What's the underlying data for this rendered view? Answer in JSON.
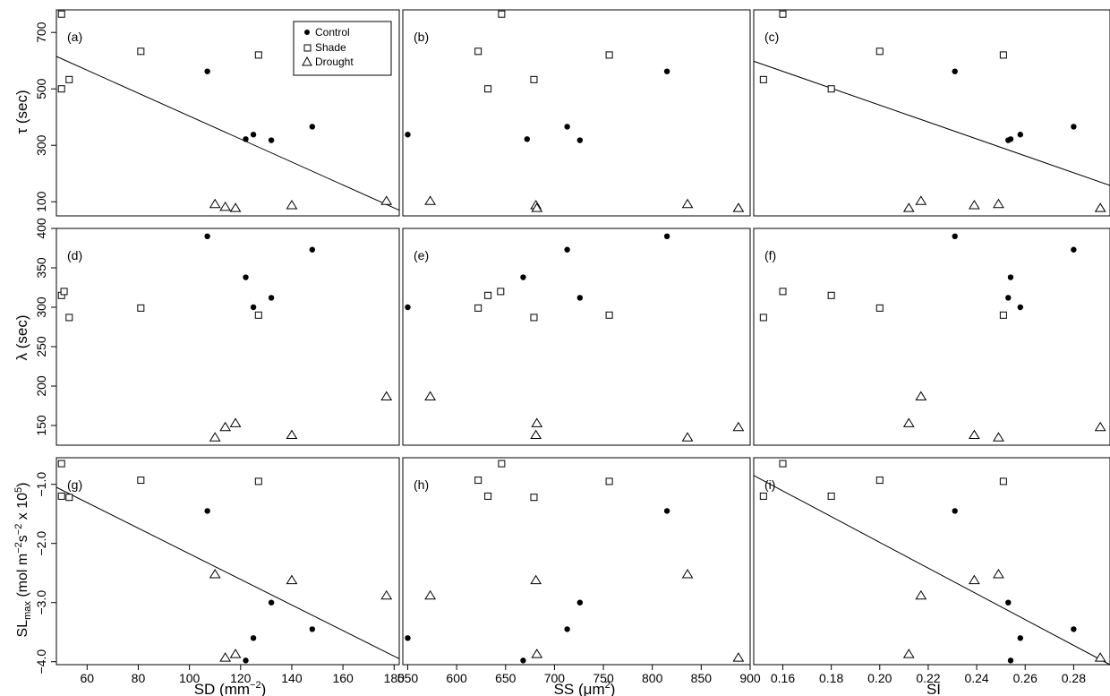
{
  "legend": {
    "position": "top-left of panel (a)",
    "entries": [
      {
        "label": "Control",
        "marker": "filled-circle"
      },
      {
        "label": "Shade",
        "marker": "open-square"
      },
      {
        "label": "Drought",
        "marker": "open-triangle"
      }
    ]
  },
  "x_labels": {
    "sd": {
      "main": "SD (mm",
      "sup": "−2",
      "tail": ")"
    },
    "ss": {
      "main": "SS (",
      "mu": "μ",
      "mid": "m",
      "sup": "2",
      "tail": ")"
    },
    "si": {
      "main": "SI"
    }
  },
  "y_labels": {
    "tau": {
      "sym": "τ",
      "rest": " (sec)"
    },
    "lambda": {
      "sym": "λ",
      "rest": " (sec)"
    },
    "sl": {
      "main": "SL",
      "sub": "max",
      "a": " (mol m",
      "sup1": "−2",
      "b": "s",
      "sup2": "−2",
      "c": " x 10",
      "sup3": "5",
      "d": ")"
    }
  },
  "colors": {
    "marker": "#000000",
    "line": "#000000",
    "frame": "#000000",
    "background": "#ffffff"
  },
  "chart_data": [
    {
      "panel": "(a)",
      "type": "scatter",
      "xlim": [
        48,
        182
      ],
      "ylim": [
        50,
        780
      ],
      "xticks": [
        "60",
        "80",
        "100",
        "120",
        "140",
        "160",
        "180"
      ],
      "yticks": [
        "100",
        "300",
        "500",
        "700"
      ],
      "series": [
        {
          "name": "Control",
          "points": [
            [
              107,
              562
            ],
            [
              122,
              322
            ],
            [
              125,
              338
            ],
            [
              132,
              318
            ],
            [
              148,
              366
            ]
          ]
        },
        {
          "name": "Shade",
          "points": [
            [
              50,
              765
            ],
            [
              50,
              500
            ],
            [
              53,
              533
            ],
            [
              81,
              633
            ],
            [
              127,
              620
            ]
          ]
        },
        {
          "name": "Drought",
          "points": [
            [
              110,
              92
            ],
            [
              114,
              82
            ],
            [
              118,
              78
            ],
            [
              140,
              88
            ],
            [
              177,
              103
            ]
          ]
        }
      ],
      "fit": [
        [
          48,
          615
        ],
        [
          182,
          70
        ]
      ]
    },
    {
      "panel": "(b)",
      "type": "scatter",
      "xlim": [
        545,
        900
      ],
      "ylim": [
        50,
        780
      ],
      "xticks": [
        "550",
        "600",
        "650",
        "700",
        "750",
        "800",
        "850",
        "900"
      ],
      "yticks": [],
      "series": [
        {
          "name": "Control",
          "points": [
            [
              550,
              338
            ],
            [
              672,
              322
            ],
            [
              713,
              366
            ],
            [
              726,
              318
            ],
            [
              815,
              562
            ]
          ]
        },
        {
          "name": "Shade",
          "points": [
            [
              622,
              633
            ],
            [
              632,
              500
            ],
            [
              646,
              765
            ],
            [
              679,
              533
            ],
            [
              756,
              620
            ]
          ]
        },
        {
          "name": "Drought",
          "points": [
            [
              573,
              103
            ],
            [
              681,
              88
            ],
            [
              682,
              78
            ],
            [
              836,
              92
            ],
            [
              888,
              78
            ]
          ]
        }
      ]
    },
    {
      "panel": "(c)",
      "type": "scatter",
      "xlim": [
        0.148,
        0.295
      ],
      "ylim": [
        50,
        780
      ],
      "xticks": [
        "0.16",
        "0.18",
        "0.20",
        "0.22",
        "0.24",
        "0.26",
        "0.28"
      ],
      "yticks": [],
      "series": [
        {
          "name": "Control",
          "points": [
            [
              0.231,
              562
            ],
            [
              0.253,
              318
            ],
            [
              0.254,
              322
            ],
            [
              0.258,
              338
            ],
            [
              0.28,
              366
            ]
          ]
        },
        {
          "name": "Shade",
          "points": [
            [
              0.152,
              533
            ],
            [
              0.16,
              765
            ],
            [
              0.18,
              500
            ],
            [
              0.2,
              633
            ],
            [
              0.251,
              620
            ]
          ]
        },
        {
          "name": "Drought",
          "points": [
            [
              0.212,
              78
            ],
            [
              0.217,
              103
            ],
            [
              0.239,
              88
            ],
            [
              0.249,
              92
            ],
            [
              0.291,
              78
            ]
          ]
        }
      ],
      "fit": [
        [
          0.148,
          598
        ],
        [
          0.295,
          158
        ]
      ]
    },
    {
      "panel": "(d)",
      "type": "scatter",
      "xlim": [
        48,
        182
      ],
      "ylim": [
        125,
        400
      ],
      "xticks": [
        "60",
        "80",
        "100",
        "120",
        "140",
        "160",
        "180"
      ],
      "yticks": [
        "150",
        "200",
        "250",
        "300",
        "350",
        "400"
      ],
      "series": [
        {
          "name": "Control",
          "points": [
            [
              107,
              390
            ],
            [
              122,
              338
            ],
            [
              125,
              300
            ],
            [
              132,
              312
            ],
            [
              148,
              373
            ]
          ]
        },
        {
          "name": "Shade",
          "points": [
            [
              50,
              315
            ],
            [
              51,
              320
            ],
            [
              53,
              287
            ],
            [
              81,
              299
            ],
            [
              127,
              290
            ]
          ]
        },
        {
          "name": "Drought",
          "points": [
            [
              110,
              135
            ],
            [
              114,
              148
            ],
            [
              118,
              153
            ],
            [
              140,
              138
            ],
            [
              177,
              187
            ]
          ]
        }
      ]
    },
    {
      "panel": "(e)",
      "type": "scatter",
      "xlim": [
        545,
        900
      ],
      "ylim": [
        125,
        400
      ],
      "xticks": [
        "550",
        "600",
        "650",
        "700",
        "750",
        "800",
        "850",
        "900"
      ],
      "yticks": [],
      "series": [
        {
          "name": "Control",
          "points": [
            [
              550,
              300
            ],
            [
              668,
              338
            ],
            [
              713,
              373
            ],
            [
              726,
              312
            ],
            [
              815,
              390
            ]
          ]
        },
        {
          "name": "Shade",
          "points": [
            [
              622,
              299
            ],
            [
              632,
              315
            ],
            [
              645,
              320
            ],
            [
              679,
              287
            ],
            [
              756,
              290
            ]
          ]
        },
        {
          "name": "Drought",
          "points": [
            [
              573,
              187
            ],
            [
              681,
              138
            ],
            [
              682,
              153
            ],
            [
              836,
              135
            ],
            [
              888,
              148
            ]
          ]
        }
      ]
    },
    {
      "panel": "(f)",
      "type": "scatter",
      "xlim": [
        0.148,
        0.295
      ],
      "ylim": [
        125,
        400
      ],
      "xticks": [
        "0.16",
        "0.18",
        "0.20",
        "0.22",
        "0.24",
        "0.26",
        "0.28"
      ],
      "yticks": [],
      "series": [
        {
          "name": "Control",
          "points": [
            [
              0.231,
              390
            ],
            [
              0.253,
              312
            ],
            [
              0.254,
              338
            ],
            [
              0.258,
              300
            ],
            [
              0.28,
              373
            ]
          ]
        },
        {
          "name": "Shade",
          "points": [
            [
              0.152,
              287
            ],
            [
              0.16,
              320
            ],
            [
              0.18,
              315
            ],
            [
              0.2,
              299
            ],
            [
              0.251,
              290
            ]
          ]
        },
        {
          "name": "Drought",
          "points": [
            [
              0.212,
              153
            ],
            [
              0.217,
              187
            ],
            [
              0.239,
              138
            ],
            [
              0.249,
              135
            ],
            [
              0.291,
              148
            ]
          ]
        }
      ]
    },
    {
      "panel": "(g)",
      "type": "scatter",
      "xlim": [
        48,
        182
      ],
      "ylim": [
        -4.05,
        -0.55
      ],
      "xticks": [
        "60",
        "80",
        "100",
        "120",
        "140",
        "160",
        "180"
      ],
      "yticks": [
        "−1.0",
        "−2.0",
        "−3.0",
        "−4.0"
      ],
      "series": [
        {
          "name": "Control",
          "points": [
            [
              107,
              -1.45
            ],
            [
              122,
              -3.98
            ],
            [
              125,
              -3.6
            ],
            [
              132,
              -3.0
            ],
            [
              148,
              -3.45
            ]
          ]
        },
        {
          "name": "Shade",
          "points": [
            [
              50,
              -0.65
            ],
            [
              50,
              -1.2
            ],
            [
              53,
              -1.22
            ],
            [
              81,
              -0.93
            ],
            [
              127,
              -0.95
            ]
          ]
        },
        {
          "name": "Drought",
          "points": [
            [
              110,
              -2.52
            ],
            [
              114,
              -3.93
            ],
            [
              118,
              -3.87
            ],
            [
              140,
              -2.62
            ],
            [
              177,
              -2.88
            ]
          ]
        }
      ],
      "fit": [
        [
          48,
          -1.05
        ],
        [
          182,
          -3.95
        ]
      ]
    },
    {
      "panel": "(h)",
      "type": "scatter",
      "xlim": [
        545,
        900
      ],
      "ylim": [
        -4.05,
        -0.55
      ],
      "xticks": [
        "550",
        "600",
        "650",
        "700",
        "750",
        "800",
        "850",
        "900"
      ],
      "yticks": [],
      "series": [
        {
          "name": "Control",
          "points": [
            [
              550,
              -3.6
            ],
            [
              668,
              -3.98
            ],
            [
              713,
              -3.45
            ],
            [
              726,
              -3.0
            ],
            [
              815,
              -1.45
            ]
          ]
        },
        {
          "name": "Shade",
          "points": [
            [
              622,
              -0.93
            ],
            [
              632,
              -1.2
            ],
            [
              646,
              -0.65
            ],
            [
              679,
              -1.22
            ],
            [
              756,
              -0.95
            ]
          ]
        },
        {
          "name": "Drought",
          "points": [
            [
              573,
              -2.88
            ],
            [
              681,
              -2.62
            ],
            [
              682,
              -3.87
            ],
            [
              836,
              -2.52
            ],
            [
              888,
              -3.93
            ]
          ]
        }
      ]
    },
    {
      "panel": "(i)",
      "type": "scatter",
      "xlim": [
        0.148,
        0.295
      ],
      "ylim": [
        -4.05,
        -0.55
      ],
      "xticks": [
        "0.16",
        "0.18",
        "0.20",
        "0.22",
        "0.24",
        "0.26",
        "0.28"
      ],
      "yticks": [],
      "series": [
        {
          "name": "Control",
          "points": [
            [
              0.231,
              -1.45
            ],
            [
              0.253,
              -3.0
            ],
            [
              0.254,
              -3.98
            ],
            [
              0.258,
              -3.6
            ],
            [
              0.28,
              -3.45
            ]
          ]
        },
        {
          "name": "Shade",
          "points": [
            [
              0.152,
              -1.2
            ],
            [
              0.16,
              -0.65
            ],
            [
              0.18,
              -1.2
            ],
            [
              0.2,
              -0.93
            ],
            [
              0.251,
              -0.95
            ]
          ]
        },
        {
          "name": "Drought",
          "points": [
            [
              0.212,
              -3.87
            ],
            [
              0.217,
              -2.88
            ],
            [
              0.239,
              -2.62
            ],
            [
              0.249,
              -2.52
            ],
            [
              0.291,
              -3.93
            ]
          ]
        }
      ],
      "fit": [
        [
          0.148,
          -0.85
        ],
        [
          0.295,
          -4.05
        ]
      ]
    }
  ]
}
